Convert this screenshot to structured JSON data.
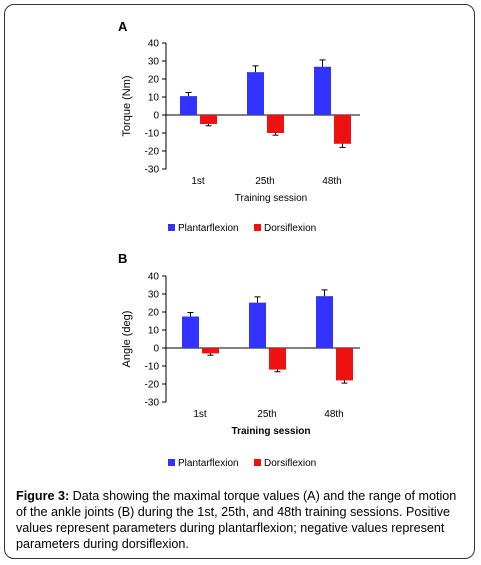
{
  "chart_data": [
    {
      "type": "bar",
      "panel_label": "A",
      "categories": [
        "1st",
        "25th",
        "48th"
      ],
      "series": [
        {
          "name": "Plantarflexion",
          "values": [
            10.5,
            23.8,
            26.8
          ],
          "errors": [
            2,
            3.5,
            3.8
          ]
        },
        {
          "name": "Dorsiflexion",
          "values": [
            -5,
            -10,
            -16
          ],
          "errors": [
            1,
            1.2,
            2
          ]
        }
      ],
      "xlabel": "Training session",
      "ylabel": "Torque (Nm)",
      "ylim": [
        -30,
        40
      ],
      "yticks": [
        40,
        30,
        20,
        10,
        0,
        -10,
        -20,
        -30
      ],
      "legend_placement": "bottom-center"
    },
    {
      "type": "bar",
      "panel_label": "B",
      "categories": [
        "1st",
        "25th",
        "48th"
      ],
      "series": [
        {
          "name": "Plantarflexion",
          "values": [
            17.5,
            25.2,
            28.8
          ],
          "errors": [
            2.2,
            3.2,
            3.5
          ]
        },
        {
          "name": "Dorsiflexion",
          "values": [
            -3,
            -12,
            -18
          ],
          "errors": [
            1,
            1.2,
            1.5
          ]
        }
      ],
      "xlabel": "Training session",
      "ylabel": "Angle (deg)",
      "ylim": [
        -30,
        40
      ],
      "yticks": [
        40,
        30,
        20,
        10,
        0,
        -10,
        -20,
        -30
      ],
      "legend_placement": "bottom-center"
    }
  ],
  "colors": {
    "plantarflexion": "#3333ff",
    "dorsiflexion": "#ee1111"
  },
  "caption": {
    "label": "Figure 3:",
    "text": " Data showing the maximal torque values (A) and the range of motion of the ankle joints (B) during the 1st, 25th, and 48th training sessions. Positive values represent parameters during plantarflexion; negative values represent parameters during dorsiflexion."
  }
}
